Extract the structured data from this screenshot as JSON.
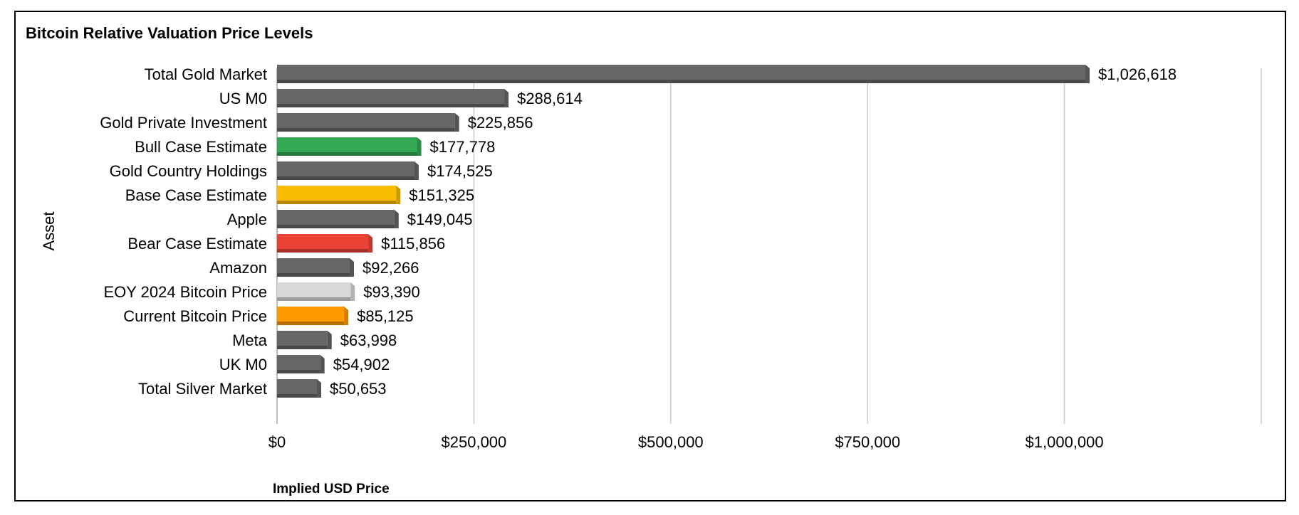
{
  "chart_data": {
    "type": "bar",
    "orientation": "horizontal",
    "title": "Bitcoin Relative Valuation Price Levels",
    "xlabel": "Implied USD Price",
    "ylabel": "Asset",
    "xlim": [
      0,
      1250000
    ],
    "xticks": [
      0,
      250000,
      500000,
      750000,
      1000000
    ],
    "xtick_labels": [
      "$0",
      "$250,000",
      "$500,000",
      "$750,000",
      "$1,000,000"
    ],
    "grid": true,
    "legend": "none",
    "categories": [
      "Total Gold Market",
      "US M0",
      "Gold Private Investment",
      "Bull Case Estimate",
      "Gold Country Holdings",
      "Base Case Estimate",
      "Apple",
      "Bear Case Estimate",
      "Amazon",
      "EOY 2024 Bitcoin Price",
      "Current Bitcoin Price",
      "Meta",
      "UK M0",
      "Total Silver Market"
    ],
    "values": [
      1026618,
      288614,
      225856,
      177778,
      174525,
      151325,
      149045,
      115856,
      92266,
      93390,
      85125,
      63998,
      54902,
      50653
    ],
    "value_labels": [
      "$1,026,618",
      "$288,614",
      "$225,856",
      "$177,778",
      "$174,525",
      "$151,325",
      "$149,045",
      "$115,856",
      "$92,266",
      "$93,390",
      "$85,125",
      "$63,998",
      "$54,902",
      "$50,653"
    ],
    "colors": [
      "#666666",
      "#666666",
      "#666666",
      "#34a853",
      "#666666",
      "#fbbc04",
      "#666666",
      "#ea4335",
      "#666666",
      "#d9d9d9",
      "#ff9900",
      "#666666",
      "#666666",
      "#666666"
    ]
  }
}
